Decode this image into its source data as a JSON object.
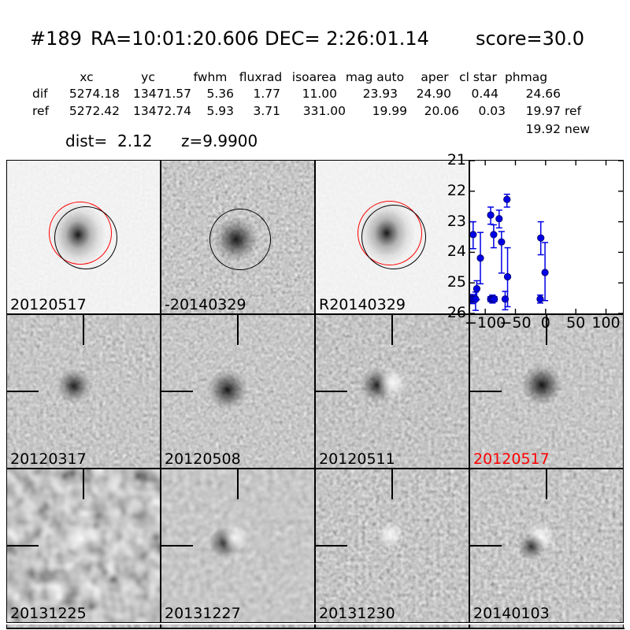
{
  "header": {
    "id": "#189",
    "coords": "RA=10:01:20.606 DEC= 2:26:01.14",
    "score": "score=30.0"
  },
  "photometry": {
    "headers": [
      "xc",
      "yc",
      "fwhm",
      "fluxrad",
      "isoarea",
      "mag auto",
      "aper",
      "cl star",
      "phmag"
    ],
    "dif": {
      "label": "dif",
      "xc": "5274.18",
      "yc": "13471.57",
      "fwhm": "5.36",
      "fluxrad": "1.77",
      "isoarea": "11.00",
      "mag_auto": "23.93",
      "aper": "24.90",
      "cl_star": "0.44",
      "phmag": "24.66"
    },
    "ref": {
      "label": "ref",
      "xc": "5272.42",
      "yc": "13472.74",
      "fwhm": "5.93",
      "fluxrad": "3.71",
      "isoarea": "331.00",
      "mag_auto": "19.99",
      "aper": "20.06",
      "cl_star": "0.03",
      "phmag": "19.97",
      "suffix": "ref"
    },
    "extra": {
      "phmag": "19.92",
      "suffix": "new"
    },
    "dist": "dist=  2.12",
    "z": "z=9.9900"
  },
  "stamps": {
    "r1c1": {
      "label": "20120517",
      "label_color": "#000000"
    },
    "r1c2": {
      "label": "-20140329",
      "label_color": "#000000"
    },
    "r1c3": {
      "label": "R20140329",
      "label_color": "#000000"
    },
    "r2c1": {
      "label": "20120317",
      "label_color": "#000000"
    },
    "r2c2": {
      "label": "20120508",
      "label_color": "#000000"
    },
    "r2c3": {
      "label": "20120511",
      "label_color": "#000000"
    },
    "r2c4": {
      "label": "20120517",
      "label_color": "#ff0000"
    },
    "r3c1": {
      "label": "20131225",
      "label_color": "#000000"
    },
    "r3c2": {
      "label": "20131227",
      "label_color": "#000000"
    },
    "r3c3": {
      "label": "20131230",
      "label_color": "#000000"
    },
    "r3c4": {
      "label": "20140103",
      "label_color": "#000000"
    }
  },
  "colors": {
    "accent_red": "#ff0000",
    "point_blue": "#0000e6",
    "axis_black": "#000000"
  },
  "chart_data": {
    "type": "scatter",
    "title": "",
    "xlabel": "",
    "ylabel": "",
    "legend": "none",
    "grid": false,
    "xlim": [
      -125,
      128
    ],
    "ylim": [
      21,
      26
    ],
    "y_axis_inverted": true,
    "xticks": [
      -100,
      -50,
      0,
      50,
      100
    ],
    "yticks": [
      21,
      22,
      23,
      24,
      25,
      26
    ],
    "marker": "o",
    "color": "#0000e6",
    "points": [
      {
        "x": -120,
        "y": 23.42,
        "t": 23.0,
        "b": 23.88
      },
      {
        "x": -108,
        "y": 24.19,
        "t": 23.35,
        "b": 25.03
      },
      {
        "x": -114,
        "y": 25.19,
        "t": 24.93,
        "b": 25.55
      },
      {
        "x": -126,
        "y": 25.53,
        "t": 25.42,
        "b": 25.64
      },
      {
        "x": -122,
        "y": 25.53,
        "t": 25.38,
        "b": 25.68
      },
      {
        "x": -119,
        "y": 25.53,
        "t": 25.42,
        "b": 25.64
      },
      {
        "x": -116,
        "y": 25.53,
        "t": 25.3,
        "b": 25.9
      },
      {
        "x": -91,
        "y": 22.78,
        "t": 22.52,
        "b": 23.08
      },
      {
        "x": -86,
        "y": 23.42,
        "t": 23.1,
        "b": 23.85
      },
      {
        "x": -91,
        "y": 25.53,
        "t": 25.45,
        "b": 25.61
      },
      {
        "x": -88,
        "y": 25.53,
        "t": 25.4,
        "b": 25.66
      },
      {
        "x": -85,
        "y": 25.53,
        "t": 25.45,
        "b": 25.61
      },
      {
        "x": -77,
        "y": 22.9,
        "t": 22.62,
        "b": 23.2
      },
      {
        "x": -73,
        "y": 23.66,
        "t": 23.32,
        "b": 24.68
      },
      {
        "x": -64,
        "y": 22.27,
        "t": 22.1,
        "b": 22.52
      },
      {
        "x": -63,
        "y": 24.8,
        "t": 23.85,
        "b": 25.78
      },
      {
        "x": -67,
        "y": 25.53,
        "t": 25.28,
        "b": 25.88
      },
      {
        "x": -8,
        "y": 23.53,
        "t": 23.0,
        "b": 24.08
      },
      {
        "x": -1,
        "y": 24.66,
        "t": 23.68,
        "b": 25.58
      },
      {
        "x": -9,
        "y": 25.53,
        "t": 25.4,
        "b": 25.66
      }
    ]
  }
}
